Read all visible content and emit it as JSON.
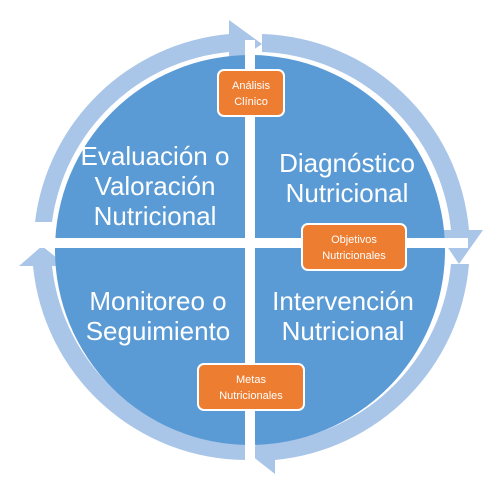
{
  "colors": {
    "quadrant_fill": "#5b9bd5",
    "arrow_ring": "#a9c5e8",
    "divider": "#ffffff",
    "box_fill": "#ed7d31",
    "box_stroke": "#ffffff",
    "text": "#ffffff"
  },
  "quadrants": [
    {
      "id": "top-left",
      "lines": [
        "Evaluación o",
        "Valoración",
        "Nutricional"
      ]
    },
    {
      "id": "top-right",
      "lines": [
        "Diagnóstico",
        "Nutricional"
      ]
    },
    {
      "id": "bottom-left",
      "lines": [
        "Monitoreo o",
        "Seguimiento"
      ]
    },
    {
      "id": "bottom-right",
      "lines": [
        "Intervención",
        "Nutricional"
      ]
    }
  ],
  "boxes": [
    {
      "id": "analisis",
      "lines": [
        "Análisis",
        "Clínico"
      ]
    },
    {
      "id": "objetivos",
      "lines": [
        "Objetivos",
        "Nutricionales"
      ]
    },
    {
      "id": "metas",
      "lines": [
        "Metas",
        "Nutricionales"
      ]
    }
  ],
  "arrows": [
    "arrow-top-right",
    "arrow-right-down",
    "arrow-bottom-left",
    "arrow-left-up"
  ]
}
